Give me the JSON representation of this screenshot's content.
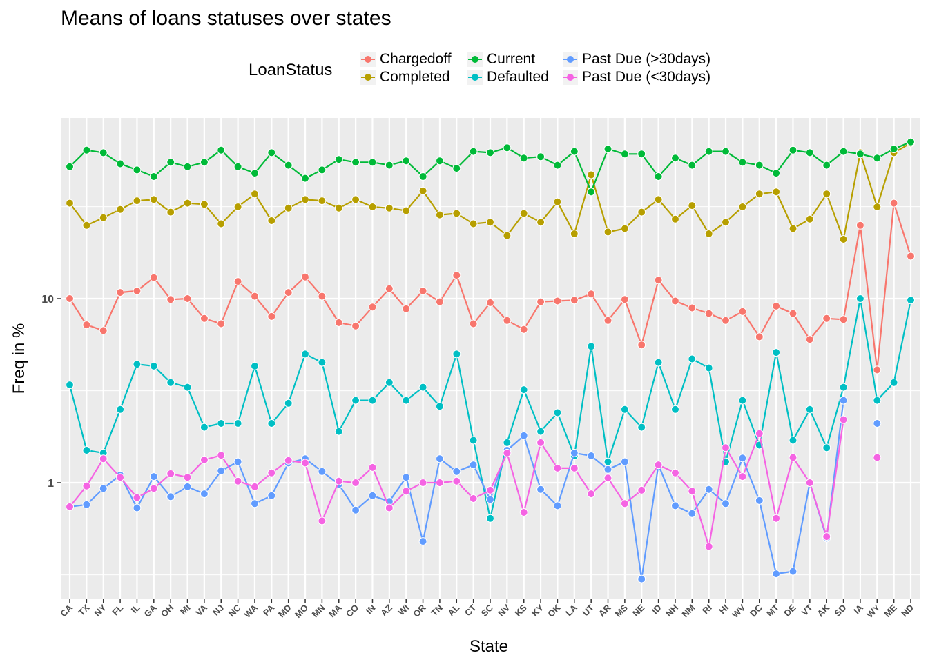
{
  "chart_data": {
    "type": "line",
    "title": "Means of loans statuses over states",
    "xlabel": "State",
    "ylabel": "Freq in %",
    "yscale": "log10",
    "ylim": [
      0.2,
      100
    ],
    "yticks": [
      1,
      10
    ],
    "grid": true,
    "legend": {
      "title": "LoanStatus",
      "position": "top"
    },
    "categories": [
      "CA",
      "TX",
      "NY",
      "FL",
      "IL",
      "GA",
      "OH",
      "MI",
      "VA",
      "NJ",
      "NC",
      "WA",
      "PA",
      "MD",
      "MO",
      "MN",
      "MA",
      "CO",
      "IN",
      "AZ",
      "WI",
      "OR",
      "TN",
      "AL",
      "CT",
      "SC",
      "NV",
      "KS",
      "KY",
      "OK",
      "LA",
      "UT",
      "AR",
      "MS",
      "NE",
      "ID",
      "NH",
      "NM",
      "RI",
      "HI",
      "WV",
      "DC",
      "MT",
      "DE",
      "VT",
      "AK",
      "SD",
      "IA",
      "WY",
      "ME",
      "ND"
    ],
    "series": [
      {
        "name": "Chargedoff",
        "color": "#F8766D",
        "values": [
          10,
          7.2,
          6.7,
          10.8,
          11,
          13,
          9.9,
          10,
          7.8,
          7.3,
          12.4,
          10.3,
          8,
          10.8,
          13.1,
          10.3,
          7.4,
          7.1,
          9,
          11.3,
          8.8,
          11,
          9.6,
          13.4,
          7.3,
          9.5,
          7.6,
          6.8,
          9.6,
          9.7,
          9.8,
          10.6,
          7.6,
          9.9,
          5.6,
          12.6,
          9.7,
          8.9,
          8.3,
          7.6,
          8.5,
          6.2,
          9.1,
          8.3,
          6,
          7.8,
          7.7,
          25,
          4.1,
          33,
          17
        ]
      },
      {
        "name": "Completed",
        "color": "#B79F00",
        "values": [
          33,
          25,
          27.5,
          30.5,
          34,
          34.5,
          29.5,
          33,
          32.5,
          25.5,
          31.5,
          37,
          26.5,
          31,
          34.5,
          34,
          31,
          34.5,
          31.5,
          31,
          30,
          38.5,
          28.5,
          29,
          25.5,
          26,
          22,
          29,
          26,
          33.5,
          22.5,
          47,
          23,
          24,
          29.5,
          34.5,
          27,
          32,
          22.5,
          26,
          31.5,
          37,
          38,
          24,
          27,
          37,
          21,
          62,
          31.5,
          62,
          70
        ]
      },
      {
        "name": "Current",
        "color": "#00BA38",
        "values": [
          52,
          64,
          62,
          54,
          50,
          46,
          55,
          52,
          55,
          64,
          52,
          48,
          62,
          53,
          45,
          50,
          57,
          55,
          55,
          53,
          56,
          46,
          56,
          51,
          63,
          62,
          66,
          58,
          59,
          53,
          63,
          38,
          65,
          61,
          61,
          46,
          58,
          53,
          63,
          63,
          55,
          53,
          48,
          64,
          62,
          53,
          63,
          61,
          58,
          65,
          71
        ]
      },
      {
        "name": "Defaulted",
        "color": "#00BFC4",
        "values": [
          3.4,
          1.5,
          1.45,
          2.5,
          4.4,
          4.3,
          3.5,
          3.3,
          2,
          2.1,
          2.1,
          4.3,
          2.1,
          2.7,
          5,
          4.5,
          1.9,
          2.8,
          2.8,
          3.5,
          2.8,
          3.3,
          2.6,
          5,
          1.7,
          0.64,
          1.65,
          3.2,
          1.9,
          2.4,
          1.4,
          5.5,
          1.3,
          2.5,
          2,
          4.5,
          2.5,
          4.7,
          4.2,
          1.3,
          2.8,
          1.6,
          5.1,
          1.7,
          2.5,
          1.55,
          3.3,
          10,
          2.8,
          3.5,
          9.8
        ]
      },
      {
        "name": "Past Due (>30days)",
        "color": "#619CFF",
        "values": [
          0.74,
          0.76,
          0.93,
          1.1,
          0.73,
          1.08,
          0.84,
          0.95,
          0.87,
          1.16,
          1.3,
          0.77,
          0.85,
          1.28,
          1.35,
          1.15,
          0.98,
          0.71,
          0.85,
          0.79,
          1.07,
          0.48,
          1.35,
          1.15,
          1.25,
          0.81,
          1.5,
          1.8,
          0.92,
          0.75,
          1.45,
          1.4,
          1.18,
          1.3,
          0.3,
          1.25,
          0.75,
          0.68,
          0.92,
          0.77,
          1.36,
          0.8,
          0.32,
          0.33,
          1,
          0.5,
          2.8,
          null,
          2.1,
          null,
          null
        ]
      },
      {
        "name": "Past Due (<30days)",
        "color": "#F564E3",
        "values": [
          0.74,
          0.96,
          1.35,
          1.07,
          0.83,
          0.93,
          1.12,
          1.07,
          1.33,
          1.41,
          1.02,
          0.95,
          1.13,
          1.32,
          1.28,
          0.62,
          1.02,
          1,
          1.21,
          0.73,
          0.9,
          1,
          1,
          1.02,
          0.82,
          0.91,
          1.45,
          0.69,
          1.65,
          1.2,
          1.2,
          0.87,
          1.06,
          0.77,
          0.91,
          1.25,
          1.13,
          0.9,
          0.45,
          1.55,
          1.08,
          1.85,
          0.64,
          1.37,
          1,
          0.51,
          2.2,
          null,
          1.37,
          null,
          null
        ]
      }
    ]
  }
}
